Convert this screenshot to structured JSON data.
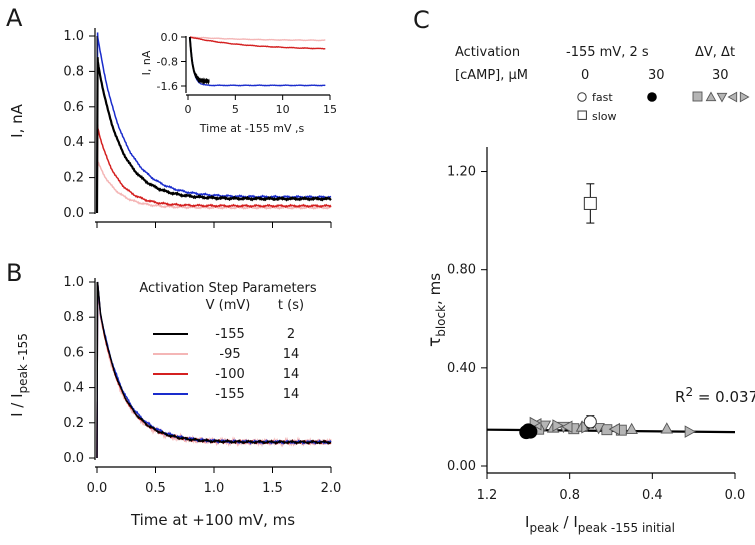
{
  "panels": {
    "a": "A",
    "b": "B",
    "c": "C"
  },
  "chart_data": [
    {
      "type": "line",
      "panel": "A",
      "ylabel": "I, nA",
      "xlabel": "",
      "xlim": [
        0,
        2.0
      ],
      "ylim": [
        0,
        1.05
      ],
      "yticks": [
        "0.0",
        "0.2",
        "0.4",
        "0.6",
        "0.8",
        "1.0"
      ],
      "series": [
        {
          "color": "#f4b6b6",
          "peak": 0.3,
          "tau": 0.16,
          "ss": 0.03
        },
        {
          "color": "#d42020",
          "peak": 0.5,
          "tau": 0.16,
          "ss": 0.04
        },
        {
          "color": "#1a2ccc",
          "peak": 1.02,
          "tau": 0.22,
          "ss": 0.09
        },
        {
          "color": "#000000",
          "peak": 0.88,
          "tau": 0.2,
          "ss": 0.08
        }
      ],
      "inset": {
        "ylabel": "I, nA",
        "xlabel": "Time at -155 mV ,s",
        "xlim": [
          0,
          15
        ],
        "ylim": [
          -1.75,
          0.05
        ],
        "xticks": [
          "0",
          "5",
          "10",
          "15"
        ],
        "yticks": [
          "0.0",
          "-0.8",
          "-1.6"
        ],
        "series": [
          {
            "color": "#f4b6b6",
            "final": -0.12,
            "tau": 6,
            "tmax": 14.5
          },
          {
            "color": "#d42020",
            "final": -0.42,
            "tau": 6,
            "tmax": 14.5
          },
          {
            "color": "#1a2ccc",
            "final": -1.58,
            "tau": 0.35,
            "tmax": 14.5
          },
          {
            "color": "#000000",
            "final": -1.45,
            "tau": 0.3,
            "tmax": 2.2
          }
        ]
      }
    },
    {
      "type": "line",
      "panel": "B",
      "ylabel": "I / I",
      "ylabel_sub": "peak -155",
      "xlabel": "Time at +100 mV, ms",
      "xlim": [
        0,
        2.0
      ],
      "ylim": [
        0,
        1.05
      ],
      "xticks": [
        "0.0",
        "0.5",
        "1.0",
        "1.5",
        "2.0"
      ],
      "yticks": [
        "0.0",
        "0.2",
        "0.4",
        "0.6",
        "0.8",
        "1.0"
      ],
      "legend_title": "Activation Step Parameters",
      "legend_headers": [
        "V (mV)",
        "t (s)"
      ],
      "series": [
        {
          "color": "#000000",
          "v": "-155",
          "t": "2",
          "peak": 0.82,
          "tau": 0.2,
          "ss": 0.09
        },
        {
          "color": "#f4b6b6",
          "v": "-95",
          "t": "14",
          "peak": 0.8,
          "tau": 0.2,
          "ss": 0.09
        },
        {
          "color": "#d42020",
          "v": "-100",
          "t": "14",
          "peak": 0.81,
          "tau": 0.2,
          "ss": 0.09
        },
        {
          "color": "#1a2ccc",
          "v": "-155",
          "t": "14",
          "peak": 0.82,
          "tau": 0.21,
          "ss": 0.09
        }
      ]
    },
    {
      "type": "scatter",
      "panel": "C",
      "ylabel": "τ",
      "ylabel_sub": "block",
      "ylabel_suffix": ", ms",
      "xlabel": "I",
      "xlabel_sub1": "peak",
      "xlabel_mid": " / I",
      "xlabel_sub2": "peak -155 initial",
      "xlim": [
        1.2,
        0.0
      ],
      "ylim": [
        0,
        1.3
      ],
      "xticks": [
        {
          "v": 1.2,
          "l": "1.2"
        },
        {
          "v": 0.8,
          "l": "0.8"
        },
        {
          "v": 0.4,
          "l": "0.4"
        },
        {
          "v": 0.0,
          "l": "0.0"
        }
      ],
      "yticks": [
        {
          "v": 0.0,
          "l": "0.00"
        },
        {
          "v": 0.4,
          "l": "0.40"
        },
        {
          "v": 0.8,
          "l": "0.80"
        },
        {
          "v": 1.2,
          "l": "1.20"
        }
      ],
      "r2_label": "R",
      "r2_sup": "2",
      "r2_value": " = 0.037",
      "fit": {
        "x": [
          1.2,
          0.0
        ],
        "y": [
          0.148,
          0.138
        ]
      },
      "header": {
        "row1": [
          "Activation",
          "-155 mV, 2 s",
          "ΔV, Δt"
        ],
        "row2": [
          "[cAMP], μM",
          "0",
          "30",
          "30"
        ],
        "fast": "fast",
        "slow": "slow"
      },
      "points": {
        "slow": [
          {
            "x": 0.7,
            "y": 1.07,
            "err": 0.08
          }
        ],
        "fast": [
          {
            "x": 0.7,
            "y": 0.18,
            "err": 0.025
          }
        ],
        "filled": [
          {
            "x": 0.99,
            "y": 0.14
          },
          {
            "x": 1.0,
            "y": 0.145
          },
          {
            "x": 1.01,
            "y": 0.138
          }
        ],
        "square_gray": [
          {
            "x": 0.95,
            "y": 0.15
          },
          {
            "x": 0.78,
            "y": 0.152
          },
          {
            "x": 0.62,
            "y": 0.148
          },
          {
            "x": 0.55,
            "y": 0.146
          }
        ],
        "tri_up": [
          {
            "x": 0.88,
            "y": 0.156
          },
          {
            "x": 0.74,
            "y": 0.16
          },
          {
            "x": 0.5,
            "y": 0.15
          },
          {
            "x": 0.33,
            "y": 0.152
          }
        ],
        "tri_down": [
          {
            "x": 0.92,
            "y": 0.165
          },
          {
            "x": 0.83,
            "y": 0.16
          },
          {
            "x": 0.66,
            "y": 0.155
          }
        ],
        "tri_left": [
          {
            "x": 0.96,
            "y": 0.17
          },
          {
            "x": 0.81,
            "y": 0.16
          },
          {
            "x": 0.58,
            "y": 0.15
          }
        ],
        "tri_right": [
          {
            "x": 0.97,
            "y": 0.175
          },
          {
            "x": 0.86,
            "y": 0.165
          },
          {
            "x": 0.72,
            "y": 0.158
          },
          {
            "x": 0.22,
            "y": 0.14
          }
        ]
      }
    }
  ]
}
